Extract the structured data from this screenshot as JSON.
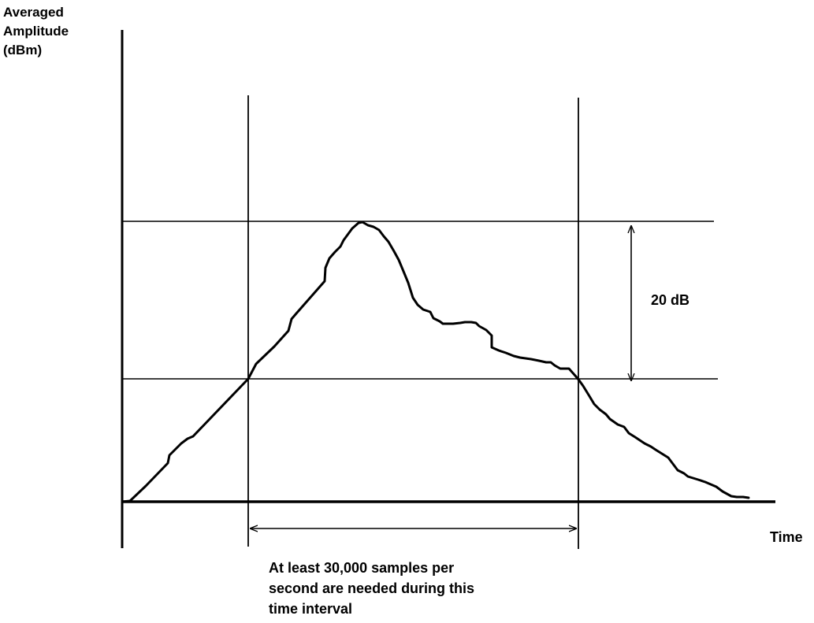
{
  "y_axis_label": [
    "Averaged",
    "Amplitude",
    "(dBm)"
  ],
  "x_axis_label": "Time",
  "level_difference_label": "20 dB",
  "interval_caption": [
    "At least 30,000 samples per",
    "second are needed during this",
    "time interval"
  ],
  "colors": {
    "stroke": "#000000",
    "background": "#ffffff"
  }
}
